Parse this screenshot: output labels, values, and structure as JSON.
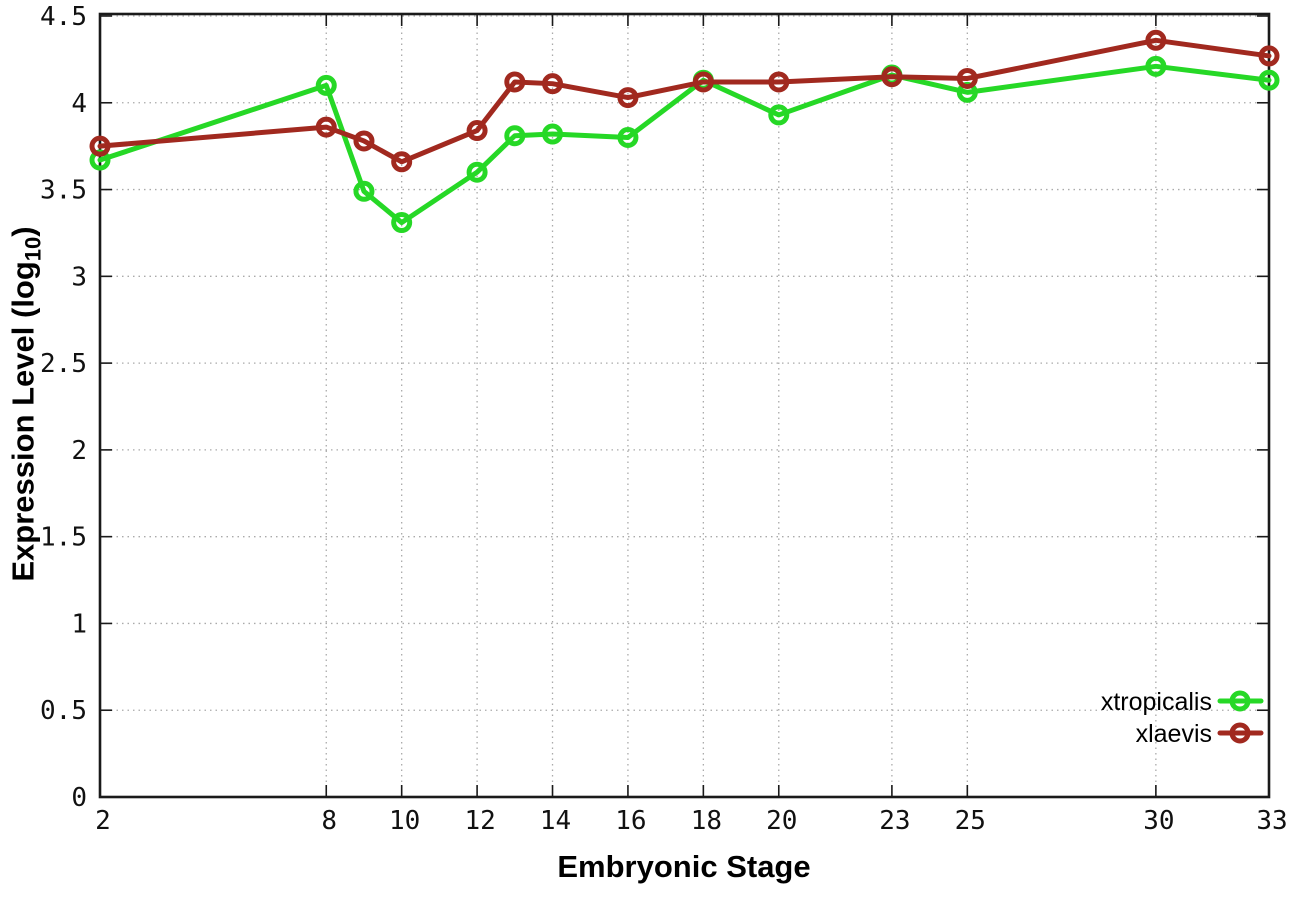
{
  "chart_data": {
    "type": "line",
    "title": "",
    "xlabel": "Embryonic Stage",
    "ylabel": "Expression Level (log10)",
    "ylabel_parts": {
      "pre": "Expression Level (log",
      "sub": "10",
      "post": ")"
    },
    "xlim": [
      2,
      33
    ],
    "ylim": [
      0,
      4.5
    ],
    "grid": true,
    "legend_position": "inside-bottom-right",
    "x": [
      2,
      8,
      9,
      10,
      12,
      13,
      14,
      16,
      18,
      20,
      23,
      25,
      30,
      33
    ],
    "x_tick_values": [
      2,
      8,
      10,
      12,
      14,
      16,
      18,
      20,
      23,
      25,
      30,
      33
    ],
    "x_tick_labels": [
      "2",
      "8",
      "10",
      "12",
      "14",
      "16",
      "18",
      "20",
      "23",
      "25",
      "30",
      "33"
    ],
    "y_tick_values": [
      0,
      0.5,
      1,
      1.5,
      2,
      2.5,
      3,
      3.5,
      4,
      4.5
    ],
    "y_tick_labels": [
      "0",
      "0.5",
      "1",
      "1.5",
      "2",
      "2.5",
      "3",
      "3.5",
      "4",
      "4.5"
    ],
    "series": [
      {
        "name": "xtropicalis",
        "color": "#26d826",
        "marker": "open-circle",
        "values": [
          3.67,
          4.1,
          3.49,
          3.31,
          3.6,
          3.81,
          3.82,
          3.8,
          4.13,
          3.93,
          4.16,
          4.06,
          4.21,
          4.13
        ]
      },
      {
        "name": "xlaevis",
        "color": "#a1291f",
        "marker": "open-circle",
        "values": [
          3.75,
          3.86,
          3.78,
          3.66,
          3.84,
          4.12,
          4.11,
          4.03,
          4.12,
          4.12,
          4.15,
          4.14,
          4.36,
          4.27
        ]
      }
    ],
    "colors": {
      "grid": "#aaaaaa",
      "border": "#1a1a1a",
      "tick_text": "#111111"
    }
  }
}
